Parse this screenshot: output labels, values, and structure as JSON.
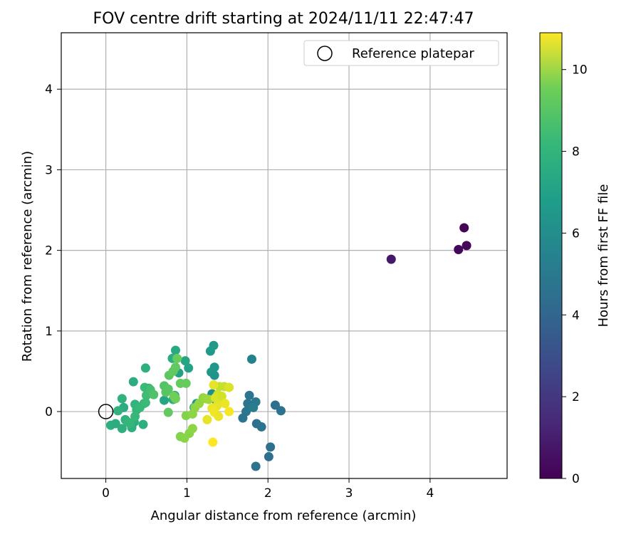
{
  "chart_data": {
    "type": "scatter",
    "title": "FOV centre drift starting at 2024/11/11 22:47:47",
    "xlabel": "Angular distance from reference (arcmin)",
    "ylabel": "Rotation from reference (arcmin)",
    "xlim": [
      -0.55,
      4.95
    ],
    "ylim": [
      -0.83,
      4.7
    ],
    "xticks": [
      0,
      1,
      2,
      3,
      4
    ],
    "yticks": [
      0,
      1,
      2,
      3,
      4
    ],
    "grid": true,
    "legend": {
      "position": "top-right",
      "entries": [
        "Reference platepar"
      ]
    },
    "reference_point": {
      "x": 0,
      "y": 0
    },
    "colorbar": {
      "label": "Hours from first FF file",
      "min": 0,
      "max": 10.9,
      "ticks": [
        0,
        2,
        4,
        6,
        8,
        10
      ],
      "colormap": "viridis"
    },
    "points": [
      {
        "x": 4.42,
        "y": 2.28,
        "c": 0.1
      },
      {
        "x": 4.45,
        "y": 2.06,
        "c": 0.15
      },
      {
        "x": 4.35,
        "y": 2.01,
        "c": 0.2
      },
      {
        "x": 3.52,
        "y": 1.89,
        "c": 0.7
      },
      {
        "x": 1.8,
        "y": 0.65,
        "c": 4.8
      },
      {
        "x": 1.77,
        "y": 0.2,
        "c": 4.3
      },
      {
        "x": 1.85,
        "y": 0.12,
        "c": 4.4
      },
      {
        "x": 1.75,
        "y": 0.1,
        "c": 4.2
      },
      {
        "x": 1.82,
        "y": 0.05,
        "c": 4.5
      },
      {
        "x": 1.73,
        "y": 0.0,
        "c": 4.3
      },
      {
        "x": 1.69,
        "y": -0.08,
        "c": 4.2
      },
      {
        "x": 2.09,
        "y": 0.08,
        "c": 4.0
      },
      {
        "x": 2.16,
        "y": 0.01,
        "c": 4.1
      },
      {
        "x": 1.86,
        "y": -0.15,
        "c": 4.0
      },
      {
        "x": 1.92,
        "y": -0.19,
        "c": 4.1
      },
      {
        "x": 2.03,
        "y": -0.44,
        "c": 4.0
      },
      {
        "x": 2.01,
        "y": -0.56,
        "c": 4.0
      },
      {
        "x": 1.85,
        "y": -0.68,
        "c": 4.1
      },
      {
        "x": 1.33,
        "y": 0.82,
        "c": 5.8
      },
      {
        "x": 1.29,
        "y": 0.75,
        "c": 5.9
      },
      {
        "x": 1.34,
        "y": 0.55,
        "c": 5.7
      },
      {
        "x": 1.3,
        "y": 0.49,
        "c": 5.8
      },
      {
        "x": 1.34,
        "y": 0.45,
        "c": 5.6
      },
      {
        "x": 1.31,
        "y": 0.22,
        "c": 5.3
      },
      {
        "x": 1.36,
        "y": 0.14,
        "c": 5.2
      },
      {
        "x": 1.27,
        "y": 0.16,
        "c": 5.4
      },
      {
        "x": 1.12,
        "y": 0.1,
        "c": 5.6
      },
      {
        "x": 1.09,
        "y": 0.05,
        "c": 5.7
      },
      {
        "x": 1.02,
        "y": 0.54,
        "c": 6.3
      },
      {
        "x": 0.98,
        "y": 0.63,
        "c": 6.4
      },
      {
        "x": 0.9,
        "y": 0.48,
        "c": 6.2
      },
      {
        "x": 0.86,
        "y": 0.76,
        "c": 6.6
      },
      {
        "x": 0.82,
        "y": 0.66,
        "c": 6.8
      },
      {
        "x": 0.85,
        "y": 0.2,
        "c": 6.5
      },
      {
        "x": 0.83,
        "y": 0.15,
        "c": 6.7
      },
      {
        "x": 0.72,
        "y": 0.14,
        "c": 6.4
      },
      {
        "x": 0.49,
        "y": 0.54,
        "c": 6.9
      },
      {
        "x": 0.34,
        "y": 0.37,
        "c": 6.8
      },
      {
        "x": 0.2,
        "y": 0.16,
        "c": 7.0
      },
      {
        "x": 0.22,
        "y": 0.05,
        "c": 6.8
      },
      {
        "x": 0.15,
        "y": 0.01,
        "c": 7.0
      },
      {
        "x": 0.06,
        "y": -0.17,
        "c": 6.9
      },
      {
        "x": 0.12,
        "y": -0.15,
        "c": 6.8
      },
      {
        "x": 0.2,
        "y": -0.21,
        "c": 6.9
      },
      {
        "x": 0.24,
        "y": -0.1,
        "c": 7.0
      },
      {
        "x": 0.32,
        "y": -0.2,
        "c": 6.9
      },
      {
        "x": 0.35,
        "y": -0.13,
        "c": 6.8
      },
      {
        "x": 0.46,
        "y": -0.16,
        "c": 6.9
      },
      {
        "x": 0.38,
        "y": 0.02,
        "c": 7.2
      },
      {
        "x": 0.36,
        "y": 0.09,
        "c": 7.1
      },
      {
        "x": 0.42,
        "y": 0.05,
        "c": 7.3
      },
      {
        "x": 0.47,
        "y": 0.1,
        "c": 7.2
      },
      {
        "x": 0.48,
        "y": 0.3,
        "c": 7.4
      },
      {
        "x": 0.53,
        "y": 0.29,
        "c": 7.3
      },
      {
        "x": 0.5,
        "y": 0.2,
        "c": 7.5
      },
      {
        "x": 0.55,
        "y": 0.27,
        "c": 7.6
      },
      {
        "x": 0.49,
        "y": 0.11,
        "c": 7.4
      },
      {
        "x": 0.27,
        "y": -0.13,
        "c": 7.1
      },
      {
        "x": 0.3,
        "y": -0.15,
        "c": 7.2
      },
      {
        "x": 0.36,
        "y": -0.06,
        "c": 7.3
      },
      {
        "x": 0.59,
        "y": 0.21,
        "c": 7.8
      },
      {
        "x": 0.72,
        "y": 0.32,
        "c": 7.9
      },
      {
        "x": 0.74,
        "y": 0.24,
        "c": 8.0
      },
      {
        "x": 0.77,
        "y": 0.28,
        "c": 8.0
      },
      {
        "x": 0.78,
        "y": 0.45,
        "c": 8.1
      },
      {
        "x": 0.83,
        "y": 0.5,
        "c": 8.2
      },
      {
        "x": 0.86,
        "y": 0.55,
        "c": 8.2
      },
      {
        "x": 0.88,
        "y": 0.66,
        "c": 8.3
      },
      {
        "x": 0.92,
        "y": 0.35,
        "c": 8.3
      },
      {
        "x": 0.99,
        "y": 0.35,
        "c": 8.3
      },
      {
        "x": 0.84,
        "y": 0.19,
        "c": 8.5
      },
      {
        "x": 0.86,
        "y": 0.16,
        "c": 8.5
      },
      {
        "x": 0.77,
        "y": -0.01,
        "c": 8.2
      },
      {
        "x": 0.92,
        "y": -0.31,
        "c": 8.8
      },
      {
        "x": 0.97,
        "y": -0.33,
        "c": 8.9
      },
      {
        "x": 1.03,
        "y": -0.27,
        "c": 8.9
      },
      {
        "x": 1.07,
        "y": -0.21,
        "c": 9.0
      },
      {
        "x": 0.99,
        "y": -0.05,
        "c": 8.8
      },
      {
        "x": 1.07,
        "y": -0.03,
        "c": 9.0
      },
      {
        "x": 1.1,
        "y": 0.05,
        "c": 9.0
      },
      {
        "x": 1.15,
        "y": 0.1,
        "c": 9.1
      },
      {
        "x": 1.2,
        "y": 0.17,
        "c": 9.0
      },
      {
        "x": 1.23,
        "y": 0.16,
        "c": 9.2
      },
      {
        "x": 1.27,
        "y": 0.15,
        "c": 9.3
      },
      {
        "x": 1.4,
        "y": 0.31,
        "c": 9.9
      },
      {
        "x": 1.46,
        "y": 0.31,
        "c": 10.0
      },
      {
        "x": 1.38,
        "y": 0.21,
        "c": 10.1
      },
      {
        "x": 1.35,
        "y": 0.17,
        "c": 10.3
      },
      {
        "x": 1.4,
        "y": 0.13,
        "c": 10.4
      },
      {
        "x": 1.43,
        "y": 0.19,
        "c": 10.2
      },
      {
        "x": 1.37,
        "y": 0.07,
        "c": 10.5
      },
      {
        "x": 1.47,
        "y": 0.1,
        "c": 10.6
      },
      {
        "x": 1.52,
        "y": 0.3,
        "c": 10.3
      },
      {
        "x": 1.33,
        "y": 0.33,
        "c": 10.5
      },
      {
        "x": 1.31,
        "y": 0.04,
        "c": 10.6
      },
      {
        "x": 1.34,
        "y": -0.01,
        "c": 10.7
      },
      {
        "x": 1.39,
        "y": -0.06,
        "c": 10.6
      },
      {
        "x": 1.25,
        "y": -0.1,
        "c": 10.5
      },
      {
        "x": 1.52,
        "y": 0.0,
        "c": 10.8
      },
      {
        "x": 1.32,
        "y": -0.38,
        "c": 10.9
      }
    ]
  }
}
